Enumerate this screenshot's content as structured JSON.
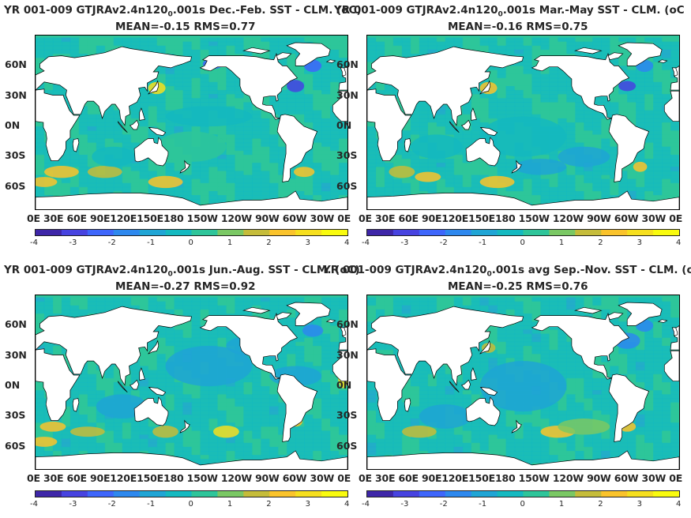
{
  "colormap_name": "parula",
  "colors": {
    "ocean_base": "#2bb3a0",
    "land": "#ffffff",
    "coast": "#000000",
    "cb": [
      "#3e26a8",
      "#4743e0",
      "#3e66fb",
      "#2d88ee",
      "#1fa5d5",
      "#14b9c0",
      "#2ec59a",
      "#7ac864",
      "#c5bc3a",
      "#fac32b",
      "#f6df1e",
      "#f9fb0e"
    ]
  },
  "chart_data": [
    {
      "type": "heatmap",
      "title_prefix": "YR 001-009 GTJRAv2.4n120",
      "title_sub": "0",
      "title_suffix": ".001s  Dec.-Feb. SST - CLM. (",
      "title_overlap": "oC)",
      "subtitle": "MEAN=-0.15   RMS=0.77",
      "mean": -0.15,
      "rms": 0.77,
      "yticks": [
        "60N",
        "30N",
        "0N",
        "30S",
        "60S"
      ],
      "xticks": [
        "0E",
        "30E",
        "60E",
        "90E",
        "120E",
        "150E",
        "180",
        "150W",
        "120W",
        "90W",
        "60W",
        "30W",
        "0E"
      ],
      "xtick_text": "0E   30E  60E  90E120E150E180 150W 120W  90W 60W 30W   0E",
      "clim": [
        -4,
        4
      ],
      "cbticks": [
        "-4",
        "-3",
        "-2",
        "-1",
        "0",
        "1",
        "2",
        "3",
        "4"
      ],
      "season": "DJF"
    },
    {
      "type": "heatmap",
      "title_prefix": "YR 001-009 GTJRAv2.4n120",
      "title_sub": "0",
      "title_suffix": ".001s Mar.-May SST - CLM. (",
      "title_overlap": "oC",
      "subtitle": "MEAN=-0.16   RMS=0.75",
      "mean": -0.16,
      "rms": 0.75,
      "yticks": [
        "60N",
        "30N",
        "0N",
        "30S",
        "60S"
      ],
      "xtick_text": "0E   30E  60E  90E120E150E180 150W 120W  90W 60W 30W   0E",
      "clim": [
        -4,
        4
      ],
      "cbticks": [
        "-4",
        "-3",
        "-2",
        "-1",
        "0",
        "1",
        "2",
        "3",
        "4"
      ],
      "season": "MAM"
    },
    {
      "type": "heatmap",
      "title_prefix": "YR 001-009 GTJRAv2.4n120",
      "title_sub": "0",
      "title_suffix": ".001s Jun.-Aug. SST - CLM. (",
      "title_overlap": "oC)",
      "subtitle": "MEAN=-0.27   RMS=0.92",
      "mean": -0.27,
      "rms": 0.92,
      "yticks": [
        "60N",
        "30N",
        "0N",
        "30S",
        "60S"
      ],
      "xtick_text": "0E   30E  60E  90E120E150E180 150W 120W  90W 60W 30W   0E",
      "clim": [
        -4,
        4
      ],
      "cbticks": [
        "-4",
        "-3",
        "-2",
        "-1",
        "0",
        "1",
        "2",
        "3",
        "4"
      ],
      "season": "JJA"
    },
    {
      "type": "heatmap",
      "title_prefix": "YR 001-009 GTJRAv2.4n120",
      "title_sub": "0",
      "title_suffix": ".001s avg Sep.-Nov. SST - CLM. (",
      "title_overlap": "o",
      "subtitle": "MEAN=-0.25   RMS=0.76",
      "mean": -0.25,
      "rms": 0.76,
      "yticks": [
        "60N",
        "30N",
        "0N",
        "30S",
        "60S"
      ],
      "xtick_text": "0E   30E  60E  90E120E150E180 150W 120W  90W 60W 30W   0E",
      "clim": [
        -4,
        4
      ],
      "cbticks": [
        "-4",
        "-3",
        "-2",
        "-1",
        "0",
        "1",
        "2",
        "3",
        "4"
      ],
      "season": "SON"
    }
  ]
}
